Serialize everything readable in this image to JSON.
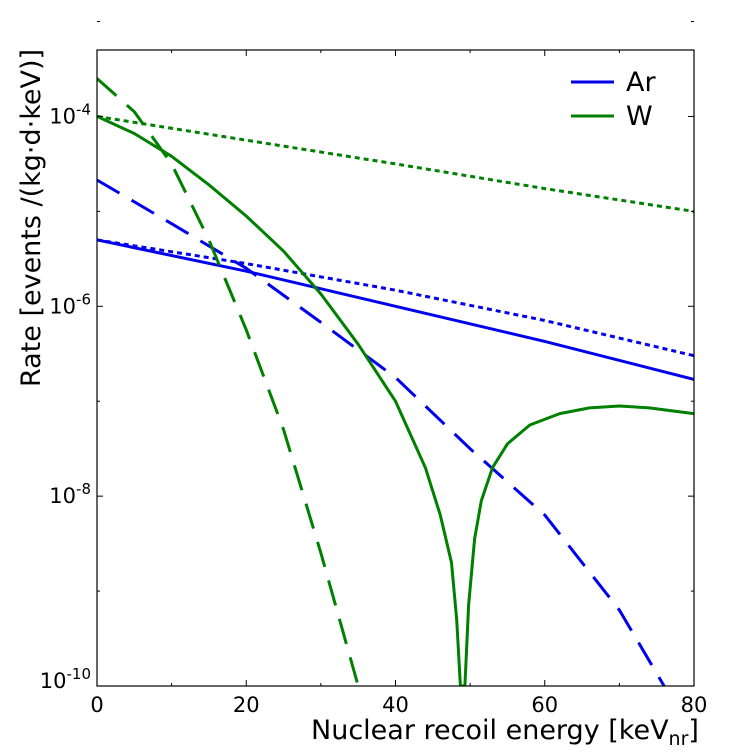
{
  "chart_data": {
    "type": "line",
    "title": "",
    "xlabel": "Nuclear recoil energy [keV",
    "xlabel_sub": "nr",
    "xlabel_end": "]",
    "ylabel": "Rate [events /(kg·d·keV)]",
    "xlim": [
      0,
      80
    ],
    "ylim_log10": [
      -10.0,
      -3.3
    ],
    "yscale": "log",
    "legend_position": "top-right",
    "x_ticks": [
      {
        "value": 0,
        "label": "0"
      },
      {
        "value": 20,
        "label": "20"
      },
      {
        "value": 40,
        "label": "40"
      },
      {
        "value": 60,
        "label": "60"
      },
      {
        "value": 80,
        "label": "80"
      }
    ],
    "y_ticks": [
      {
        "exponent": -4,
        "base": "10",
        "exp_label": "-4"
      },
      {
        "exponent": -6,
        "base": "10",
        "exp_label": "-6"
      },
      {
        "exponent": -8,
        "base": "10",
        "exp_label": "-8"
      },
      {
        "exponent": -10,
        "base": "10",
        "exp_label": "-10"
      }
    ],
    "legend": [
      {
        "label": "Ar",
        "color": "#0000ee"
      },
      {
        "label": "W",
        "color": "#008000"
      }
    ],
    "series": [
      {
        "name": "Ar-solid",
        "target": "Ar",
        "style": "solid",
        "color": "#0000ee",
        "points": [
          [
            0,
            -5.3
          ],
          [
            20,
            -5.63
          ],
          [
            40,
            -6.0
          ],
          [
            60,
            -6.37
          ],
          [
            80,
            -6.77
          ]
        ]
      },
      {
        "name": "Ar-dotted",
        "target": "Ar",
        "style": "dotted",
        "color": "#0000ee",
        "points": [
          [
            0,
            -5.3
          ],
          [
            20,
            -5.55
          ],
          [
            40,
            -5.83
          ],
          [
            60,
            -6.15
          ],
          [
            80,
            -6.52
          ]
        ]
      },
      {
        "name": "Ar-dashed",
        "target": "Ar",
        "style": "dashed",
        "color": "#0000ee",
        "points": [
          [
            0,
            -4.67
          ],
          [
            10,
            -5.13
          ],
          [
            20,
            -5.6
          ],
          [
            30,
            -6.17
          ],
          [
            40,
            -6.75
          ],
          [
            50,
            -7.5
          ],
          [
            60,
            -8.2
          ],
          [
            70,
            -9.2
          ],
          [
            76,
            -10.0
          ]
        ]
      },
      {
        "name": "W-solid",
        "target": "W",
        "style": "solid",
        "color": "#008000",
        "points": [
          [
            0,
            -4.0
          ],
          [
            5,
            -4.18
          ],
          [
            10,
            -4.42
          ],
          [
            15,
            -4.72
          ],
          [
            20,
            -5.05
          ],
          [
            25,
            -5.42
          ],
          [
            30,
            -5.87
          ],
          [
            35,
            -6.4
          ],
          [
            40,
            -7.0
          ],
          [
            44,
            -7.7
          ],
          [
            46,
            -8.2
          ],
          [
            47.5,
            -8.7
          ],
          [
            48.2,
            -9.3
          ],
          [
            48.7,
            -10.0
          ],
          [
            49.3,
            -10.0
          ],
          [
            49.8,
            -9.15
          ],
          [
            50.6,
            -8.45
          ],
          [
            51.5,
            -8.05
          ],
          [
            53,
            -7.7
          ],
          [
            55,
            -7.45
          ],
          [
            58,
            -7.25
          ],
          [
            62,
            -7.13
          ],
          [
            66,
            -7.07
          ],
          [
            70,
            -7.05
          ],
          [
            74,
            -7.07
          ],
          [
            78,
            -7.11
          ],
          [
            80,
            -7.13
          ]
        ]
      },
      {
        "name": "W-dotted",
        "target": "W",
        "style": "dotted",
        "color": "#008000",
        "points": [
          [
            0,
            -4.0
          ],
          [
            20,
            -4.25
          ],
          [
            40,
            -4.5
          ],
          [
            60,
            -4.76
          ],
          [
            80,
            -5.0
          ]
        ]
      },
      {
        "name": "W-dashed",
        "target": "W",
        "style": "dashed",
        "color": "#008000",
        "points": [
          [
            0,
            -3.6
          ],
          [
            5,
            -3.95
          ],
          [
            10,
            -4.5
          ],
          [
            15,
            -5.3
          ],
          [
            20,
            -6.25
          ],
          [
            25,
            -7.3
          ],
          [
            30,
            -8.6
          ],
          [
            35,
            -10.0
          ]
        ]
      }
    ]
  }
}
